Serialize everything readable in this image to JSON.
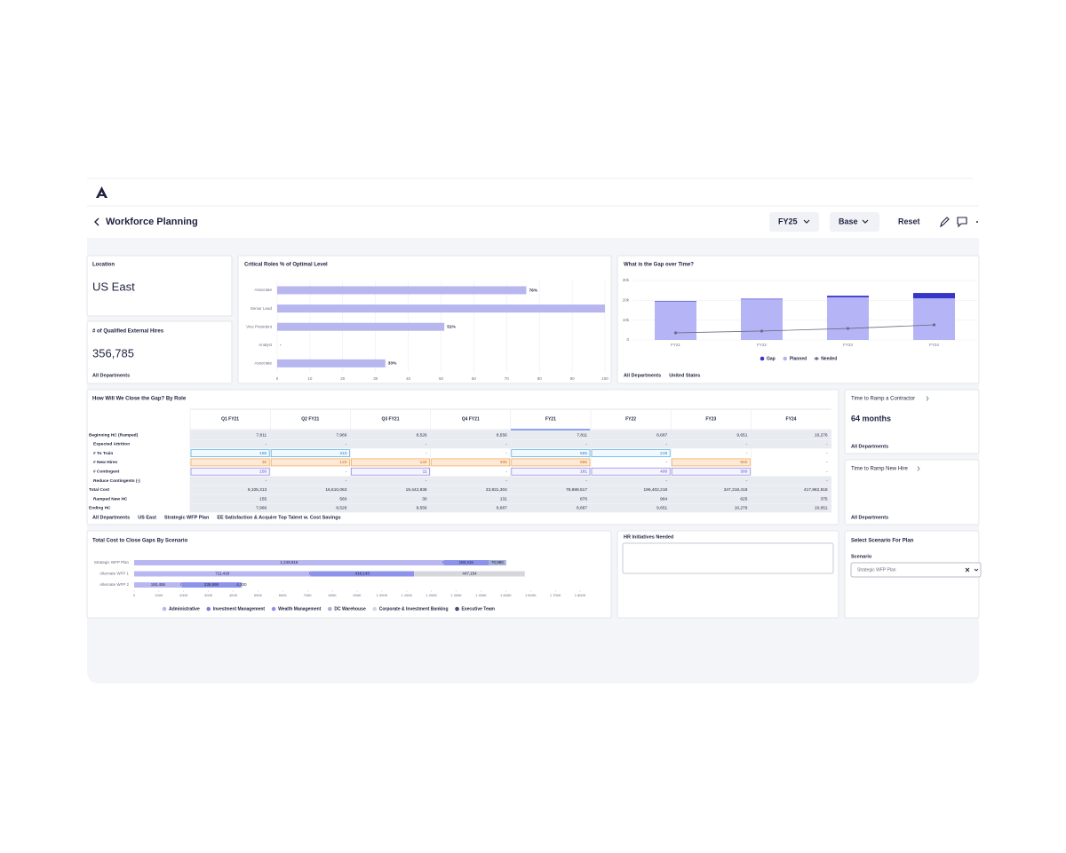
{
  "header": {
    "title": "Workforce Planning",
    "fiscal_year": "FY25",
    "scenario": "Base",
    "reset": "Reset"
  },
  "location_card": {
    "label": "Location",
    "value": "US East"
  },
  "hires_card": {
    "label": "# of Qualified External Hires",
    "value": "356,785",
    "footer": "All Departments"
  },
  "contractor_card": {
    "title": "Time to Ramp a Contractor",
    "value": "64 months",
    "footer": "All Departments"
  },
  "new_hire_card": {
    "title": "Time to Ramp New Hire",
    "footer": "All Departments"
  },
  "hr_card": {
    "title": "HR Initiatives Needed"
  },
  "scenario_card": {
    "title": "Select Scenario For Plan",
    "label": "Scenario",
    "selected": "Strategic WFP Plan"
  },
  "close_gap_table": {
    "title": "How Will We Close the Gap? By Role",
    "columns": [
      "Q1 FY21",
      "Q2 FY21",
      "Q3 FY21",
      "Q4 FY21",
      "FY21",
      "FY22",
      "FY23",
      "FY24"
    ],
    "rows": [
      {
        "label": "Beginning HC (Ramped)",
        "cells": [
          "7,811",
          "7,966",
          "8,526",
          "8,556",
          "7,811",
          "8,687",
          "9,651",
          "10,276"
        ]
      },
      {
        "label": "Expected Attrition",
        "cells": [
          "-",
          "-",
          "-",
          "-",
          "-",
          "-",
          "-",
          "-"
        ]
      },
      {
        "label": "# To Train",
        "cells": [
          "155",
          "410",
          "-",
          "-",
          "565",
          "219",
          "-",
          "-"
        ]
      },
      {
        "label": "# New Hires",
        "cells": [
          "30",
          "120",
          "140",
          "305",
          "595",
          "-",
          "600",
          "-"
        ]
      },
      {
        "label": "# Contingent",
        "cells": [
          "150",
          "-",
          "11",
          "-",
          "161",
          "400",
          "300",
          "-"
        ]
      },
      {
        "label": "Reduce Contingents (-)",
        "cells": [
          "-",
          "-",
          "-",
          "-",
          "-",
          "-",
          "-",
          "-"
        ]
      },
      {
        "label": "Total Cost",
        "cells": [
          "9,105,313",
          "16,610,063",
          "19,442,838",
          "33,831,304",
          "78,989,517",
          "196,402,218",
          "347,318,418",
          "417,982,818"
        ]
      },
      {
        "label": "Ramped New HC",
        "cells": [
          "155",
          "560",
          "30",
          "131",
          "876",
          "964",
          "625",
          "375"
        ]
      },
      {
        "label": "Ending HC",
        "cells": [
          "7,966",
          "8,526",
          "8,556",
          "8,687",
          "8,687",
          "9,651",
          "10,276",
          "10,651"
        ]
      }
    ],
    "footer_tags": [
      "All Departments",
      "US East",
      "Strategic WFP Plan",
      "EE Satisfaction & Acquire Top Talent w. Cost Savings"
    ]
  },
  "chart_data": [
    {
      "type": "bar",
      "orientation": "horizontal",
      "title": "Critical Roles % of Optimal Level",
      "categories": [
        "Associate",
        "Senior Lead",
        "Vice President",
        "Analyst",
        "Associate"
      ],
      "values": [
        76,
        100,
        51,
        null,
        33
      ],
      "value_labels": [
        "76%",
        null,
        "51%",
        "-",
        "33%"
      ],
      "color": "#b8b6ef",
      "xlim": [
        0,
        100
      ],
      "xticks": [
        0,
        10,
        20,
        30,
        40,
        50,
        60,
        70,
        80,
        90,
        100
      ],
      "grid": true
    },
    {
      "type": "bar",
      "stacked": true,
      "title": "What is the Gap over Time?",
      "categories": [
        "FY21",
        "FY22",
        "FY23",
        "FY24"
      ],
      "series": [
        {
          "name": "Gap",
          "color": "#3535c8",
          "values": [
            300,
            300,
            800,
            2700
          ]
        },
        {
          "name": "Planned",
          "color": "#b5b4f6",
          "values": [
            19300,
            20500,
            21500,
            21000
          ]
        },
        {
          "name": "Needed",
          "type": "line",
          "color": "#6b6b80",
          "values": [
            3600,
            4500,
            5800,
            7600
          ]
        }
      ],
      "ylim": [
        0,
        30000
      ],
      "yticks": [
        0,
        {
          "value": 10000,
          "label": "10k"
        },
        {
          "value": 20000,
          "label": "20k"
        },
        {
          "value": 30000,
          "label": "30k"
        }
      ],
      "grid": true,
      "footer_tags": [
        "All Departments",
        "United States"
      ]
    },
    {
      "type": "bar",
      "orientation": "horizontal",
      "stacked": true,
      "title": "Total Cost to Close Gaps By Scenario",
      "categories": [
        "Strategic WFP Plan",
        "Alternate WFP 1",
        "Alternate WFP 2"
      ],
      "series": [
        {
          "name": "Administrative",
          "color": "#b9b7f2",
          "values": [
            1249915,
            711418,
            192455
          ],
          "value_labels": [
            "1,249,915",
            "711,418",
            "192,455"
          ]
        },
        {
          "name": "Investment Management",
          "color": "#7f7ddf",
          "values": [
            0,
            0,
            0
          ]
        },
        {
          "name": "Wealth Management",
          "color": "#8d93ea",
          "values": [
            180415,
            418143,
            238590
          ],
          "value_labels": [
            "180,415",
            "418,143",
            "238,590"
          ]
        },
        {
          "name": "DC Warehouse",
          "color": "#a7b0d8",
          "values": [
            70980,
            null,
            4200
          ],
          "value_labels": [
            "70,980",
            null,
            "4,200"
          ]
        },
        {
          "name": "Corporate & Investment Banking",
          "color": "#d6d6dd",
          "values": [
            null,
            447154,
            null
          ],
          "value_labels": [
            null,
            "447,154",
            null
          ]
        },
        {
          "name": "Executive Team",
          "color": "#4b4a7a",
          "values": [
            null,
            null,
            null
          ]
        }
      ],
      "xlim": [
        0,
        1900000
      ],
      "xticks": [
        0,
        {
          "value": 100000,
          "label": "100K"
        },
        {
          "value": 200000,
          "label": "200K"
        },
        {
          "value": 300000,
          "label": "300K"
        },
        {
          "value": 400000,
          "label": "400K"
        },
        {
          "value": 500000,
          "label": "500K"
        },
        {
          "value": 600000,
          "label": "600K"
        },
        {
          "value": 700000,
          "label": "700K"
        },
        {
          "value": 800000,
          "label": "800K"
        },
        {
          "value": 900000,
          "label": "900K"
        },
        {
          "value": 1000000,
          "label": "1 000K"
        },
        {
          "value": 1100000,
          "label": "1 100K"
        },
        {
          "value": 1200000,
          "label": "1 200K"
        },
        {
          "value": 1300000,
          "label": "1 300K"
        },
        {
          "value": 1400000,
          "label": "1 400K"
        },
        {
          "value": 1500000,
          "label": "1 500K"
        },
        {
          "value": 1600000,
          "label": "1 600K"
        },
        {
          "value": 1700000,
          "label": "1 700K"
        },
        {
          "value": 1800000,
          "label": "1 800K"
        }
      ]
    }
  ]
}
